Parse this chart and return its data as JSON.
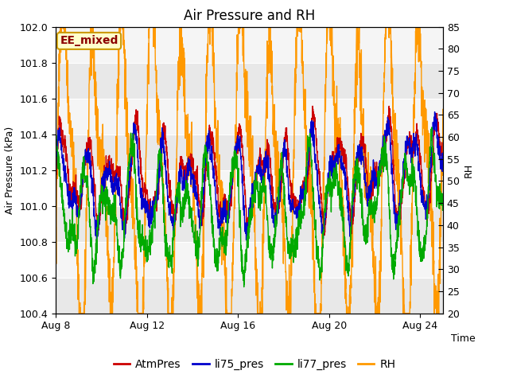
{
  "title": "Air Pressure and RH",
  "ylabel_left": "Air Pressure (kPa)",
  "ylabel_right": "RH",
  "annotation": "EE_mixed",
  "xlim_days": [
    0,
    17
  ],
  "ylim_left": [
    100.4,
    102.0
  ],
  "ylim_right": [
    20,
    85
  ],
  "x_ticks_labels": [
    "Aug 8",
    "Aug 12",
    "Aug 16",
    "Aug 20",
    "Aug 24"
  ],
  "x_ticks_positions": [
    0,
    4,
    8,
    12,
    16
  ],
  "y_ticks_left": [
    100.4,
    100.6,
    100.8,
    101.0,
    101.2,
    101.4,
    101.6,
    101.8,
    102.0
  ],
  "y_ticks_right": [
    20,
    25,
    30,
    35,
    40,
    45,
    50,
    55,
    60,
    65,
    70,
    75,
    80,
    85
  ],
  "colors": {
    "AtmPres": "#cc0000",
    "li75_pres": "#0000cc",
    "li77_pres": "#00aa00",
    "RH": "#ff9900"
  },
  "background_plot": "#e8e8e8",
  "linewidth": 1.0,
  "title_fontsize": 12,
  "axis_fontsize": 9,
  "tick_fontsize": 9,
  "legend_fontsize": 10,
  "annotation_fontsize": 10
}
